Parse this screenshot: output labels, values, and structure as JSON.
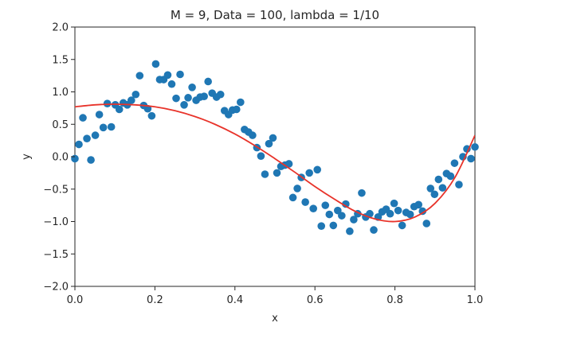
{
  "chart_data": {
    "type": "scatter",
    "title": "M = 9, Data = 100, lambda =  1/10",
    "xlabel": "x",
    "ylabel": "y",
    "xlim": [
      0.0,
      1.0
    ],
    "ylim": [
      -2.0,
      2.0
    ],
    "xticks": [
      "0.0",
      "0.2",
      "0.4",
      "0.6",
      "0.8",
      "1.0"
    ],
    "yticks": [
      "2.0",
      "1.5",
      "1.0",
      "0.5",
      "0.0",
      "−0.5",
      "−1.0",
      "−1.5",
      "−2.0"
    ],
    "grid": false,
    "colors": {
      "points": "#1f77b4",
      "fit_line": "#e8332a"
    },
    "series": [
      {
        "kind": "scatter",
        "x": [
          0.0,
          0.01,
          0.02,
          0.03,
          0.04,
          0.051,
          0.061,
          0.071,
          0.081,
          0.091,
          0.101,
          0.111,
          0.121,
          0.131,
          0.141,
          0.152,
          0.162,
          0.172,
          0.182,
          0.192,
          0.202,
          0.212,
          0.222,
          0.232,
          0.242,
          0.253,
          0.263,
          0.273,
          0.283,
          0.293,
          0.303,
          0.313,
          0.323,
          0.333,
          0.343,
          0.354,
          0.364,
          0.374,
          0.384,
          0.394,
          0.404,
          0.414,
          0.424,
          0.434,
          0.444,
          0.455,
          0.465,
          0.475,
          0.485,
          0.495,
          0.505,
          0.515,
          0.525,
          0.535,
          0.545,
          0.556,
          0.566,
          0.576,
          0.586,
          0.596,
          0.606,
          0.616,
          0.626,
          0.636,
          0.646,
          0.657,
          0.667,
          0.677,
          0.687,
          0.697,
          0.707,
          0.717,
          0.727,
          0.737,
          0.747,
          0.758,
          0.768,
          0.778,
          0.788,
          0.798,
          0.808,
          0.818,
          0.828,
          0.838,
          0.848,
          0.859,
          0.869,
          0.879,
          0.889,
          0.899,
          0.909,
          0.919,
          0.929,
          0.939,
          0.949,
          0.96,
          0.97,
          0.98,
          0.99,
          1.0
        ],
        "y": [
          -0.03,
          0.19,
          0.6,
          0.28,
          -0.05,
          0.33,
          0.65,
          0.45,
          0.82,
          0.46,
          0.8,
          0.73,
          0.83,
          0.8,
          0.87,
          0.96,
          1.25,
          0.79,
          0.74,
          0.63,
          1.43,
          1.19,
          1.19,
          1.26,
          1.12,
          0.9,
          1.27,
          0.8,
          0.91,
          1.07,
          0.87,
          0.92,
          0.93,
          1.16,
          0.98,
          0.92,
          0.96,
          0.71,
          0.65,
          0.72,
          0.73,
          0.84,
          0.42,
          0.38,
          0.33,
          0.14,
          0.01,
          -0.27,
          0.2,
          0.29,
          -0.25,
          -0.15,
          -0.13,
          -0.11,
          -0.63,
          -0.49,
          -0.32,
          -0.7,
          -0.25,
          -0.8,
          -0.2,
          -1.07,
          -0.75,
          -0.89,
          -1.06,
          -0.83,
          -0.91,
          -0.73,
          -1.15,
          -0.97,
          -0.88,
          -0.56,
          -0.93,
          -0.88,
          -1.13,
          -0.93,
          -0.85,
          -0.81,
          -0.88,
          -0.72,
          -0.83,
          -1.06,
          -0.86,
          -0.89,
          -0.77,
          -0.74,
          -0.84,
          -1.03,
          -0.49,
          -0.58,
          -0.35,
          -0.48,
          -0.26,
          -0.3,
          -0.1,
          -0.43,
          0.0,
          0.12,
          -0.03,
          0.15
        ]
      },
      {
        "kind": "line",
        "x": [
          0.0,
          0.05,
          0.1,
          0.15,
          0.2,
          0.25,
          0.3,
          0.35,
          0.4,
          0.45,
          0.5,
          0.55,
          0.6,
          0.65,
          0.7,
          0.75,
          0.8,
          0.85,
          0.9,
          0.95,
          1.0
        ],
        "y": [
          0.77,
          0.8,
          0.81,
          0.8,
          0.77,
          0.71,
          0.62,
          0.5,
          0.35,
          0.17,
          -0.03,
          -0.24,
          -0.46,
          -0.66,
          -0.84,
          -0.96,
          -1.0,
          -0.93,
          -0.72,
          -0.32,
          0.33
        ]
      }
    ]
  }
}
